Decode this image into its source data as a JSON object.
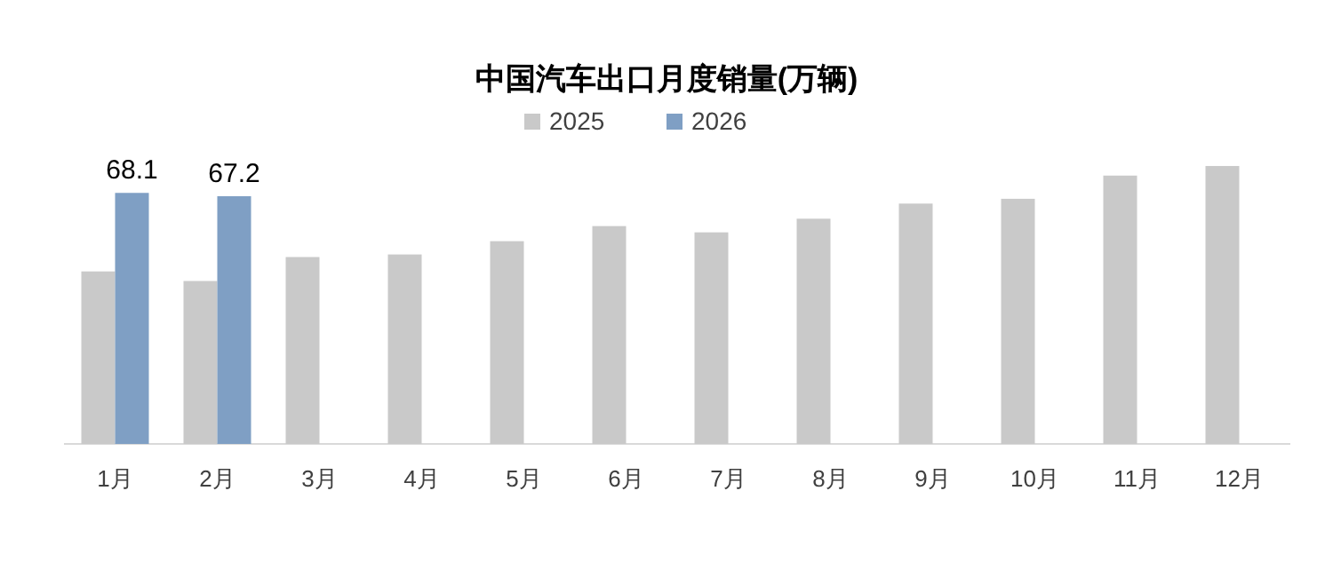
{
  "chart_data": {
    "type": "bar",
    "title": "中国汽车出口月度销量(万辆)",
    "categories": [
      "1月",
      "2月",
      "3月",
      "4月",
      "5月",
      "6月",
      "7月",
      "8月",
      "9月",
      "10月",
      "11月",
      "12月"
    ],
    "series": [
      {
        "name": "2025",
        "color": "#c9c9c9",
        "values": [
          46.8,
          44.2,
          50.7,
          51.4,
          55.0,
          59.1,
          57.4,
          61.1,
          65.2,
          66.5,
          72.8,
          75.4
        ]
      },
      {
        "name": "2026",
        "color": "#7f9fc4",
        "values": [
          68.1,
          67.2,
          null,
          null,
          null,
          null,
          null,
          null,
          null,
          null,
          null,
          null
        ],
        "value_labels": [
          "68.1",
          "67.2",
          null,
          null,
          null,
          null,
          null,
          null,
          null,
          null,
          null,
          null
        ]
      }
    ],
    "legend": "top"
  }
}
